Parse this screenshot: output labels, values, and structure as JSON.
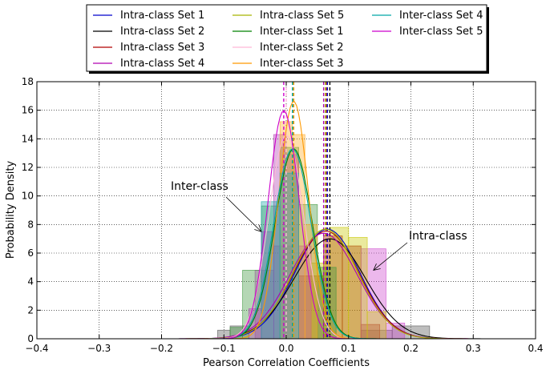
{
  "chart_data": {
    "type": "histogram-with-density",
    "xlabel": "Pearson Correlation Coefficients",
    "ylabel": "Probability Density",
    "xlim": [
      -0.4,
      0.4
    ],
    "ylim": [
      0,
      18
    ],
    "xticks": [
      -0.4,
      -0.3,
      -0.2,
      -0.1,
      0.0,
      0.1,
      0.2,
      0.3,
      0.4
    ],
    "xtick_labels": [
      "−0.4",
      "−0.3",
      "−0.2",
      "−0.1",
      "0.0",
      "0.1",
      "0.2",
      "0.3",
      "0.4"
    ],
    "yticks": [
      0,
      2,
      4,
      6,
      8,
      10,
      12,
      14,
      16,
      18
    ],
    "ytick_labels": [
      "0",
      "2",
      "4",
      "6",
      "8",
      "10",
      "12",
      "14",
      "16",
      "18"
    ],
    "grid": true,
    "legend_position": "top-center-outside",
    "legend_columns": 3,
    "series": [
      {
        "name": "Intra-class Set 1",
        "group": "intra",
        "color": "#0000cc",
        "mean": 0.066,
        "std": 0.052
      },
      {
        "name": "Intra-class Set 2",
        "group": "intra",
        "color": "#000000",
        "mean": 0.07,
        "std": 0.057
      },
      {
        "name": "Intra-class Set 3",
        "group": "intra",
        "color": "#b00000",
        "mean": 0.064,
        "std": 0.053
      },
      {
        "name": "Intra-class Set 4",
        "group": "intra",
        "color": "#b000b0",
        "mean": 0.06,
        "std": 0.054
      },
      {
        "name": "Intra-class Set 5",
        "group": "intra",
        "color": "#a8b400",
        "mean": 0.063,
        "std": 0.052
      },
      {
        "name": "Inter-class Set 1",
        "group": "inter",
        "color": "#008000",
        "mean": 0.012,
        "std": 0.03
      },
      {
        "name": "Inter-class Set 2",
        "group": "inter",
        "color": "#ffb6d8",
        "mean": 0.0,
        "std": 0.028
      },
      {
        "name": "Inter-class Set 3",
        "group": "inter",
        "color": "#ff9900",
        "mean": 0.012,
        "std": 0.024
      },
      {
        "name": "Inter-class Set 4",
        "group": "inter",
        "color": "#00a8a8",
        "mean": 0.01,
        "std": 0.03
      },
      {
        "name": "Inter-class Set 5",
        "group": "inter",
        "color": "#cc00cc",
        "mean": -0.004,
        "std": 0.025
      }
    ],
    "histograms": [
      {
        "series": "Intra-class Set 2",
        "color": "#555555",
        "bins": [
          [
            -0.11,
            -0.09,
            0.6
          ],
          [
            -0.09,
            -0.06,
            0.9
          ],
          [
            0.12,
            0.17,
            0.6
          ],
          [
            0.17,
            0.23,
            0.9
          ]
        ]
      },
      {
        "series": "Intra-class Set 3",
        "color": "#a00000",
        "bins": [
          [
            0.02,
            0.06,
            4.4
          ],
          [
            0.06,
            0.09,
            7.2
          ],
          [
            0.09,
            0.12,
            6.5
          ],
          [
            0.12,
            0.15,
            1.0
          ]
        ]
      },
      {
        "series": "Intra-class Set 4",
        "color": "#cc44cc",
        "bins": [
          [
            -0.05,
            -0.02,
            4.8
          ],
          [
            -0.02,
            0.01,
            6.5
          ],
          [
            0.12,
            0.16,
            6.3
          ],
          [
            0.16,
            0.19,
            1.1
          ]
        ]
      },
      {
        "series": "Intra-class Set 5",
        "color": "#c8c800",
        "bins": [
          [
            0.04,
            0.07,
            5.3
          ],
          [
            0.07,
            0.1,
            7.8
          ],
          [
            0.1,
            0.13,
            7.1
          ],
          [
            0.13,
            0.16,
            1.9
          ]
        ]
      },
      {
        "series": "Inter-class Set 1",
        "color": "#3c963c",
        "bins": [
          [
            -0.09,
            -0.07,
            0.8
          ],
          [
            -0.07,
            -0.04,
            4.8
          ],
          [
            -0.04,
            -0.01,
            9.3
          ],
          [
            -0.01,
            0.02,
            13.4
          ],
          [
            0.02,
            0.05,
            9.4
          ],
          [
            0.05,
            0.08,
            5.0
          ]
        ]
      },
      {
        "series": "Inter-class Set 5",
        "color": "#b040b0",
        "bins": [
          [
            -0.06,
            -0.04,
            2.1
          ],
          [
            -0.04,
            -0.02,
            7.5
          ],
          [
            -0.02,
            0.0,
            14.3
          ],
          [
            0.0,
            0.02,
            12.9
          ],
          [
            0.02,
            0.04,
            6.5
          ]
        ]
      },
      {
        "series": "Inter-class Set 3",
        "color": "#ffaa22",
        "bins": [
          [
            -0.01,
            0.01,
            15.2
          ],
          [
            0.01,
            0.03,
            14.3
          ],
          [
            0.03,
            0.05,
            8.0
          ]
        ]
      },
      {
        "series": "Inter-class Set 4",
        "color": "#22aaaa",
        "bins": [
          [
            -0.04,
            -0.01,
            9.6
          ],
          [
            -0.01,
            0.02,
            11.6
          ]
        ]
      }
    ],
    "annotations": [
      {
        "text": "Inter-class",
        "target_x": -0.04,
        "target_y": 7.5
      },
      {
        "text": "Intra-class",
        "target_x": 0.14,
        "target_y": 4.8
      }
    ]
  }
}
